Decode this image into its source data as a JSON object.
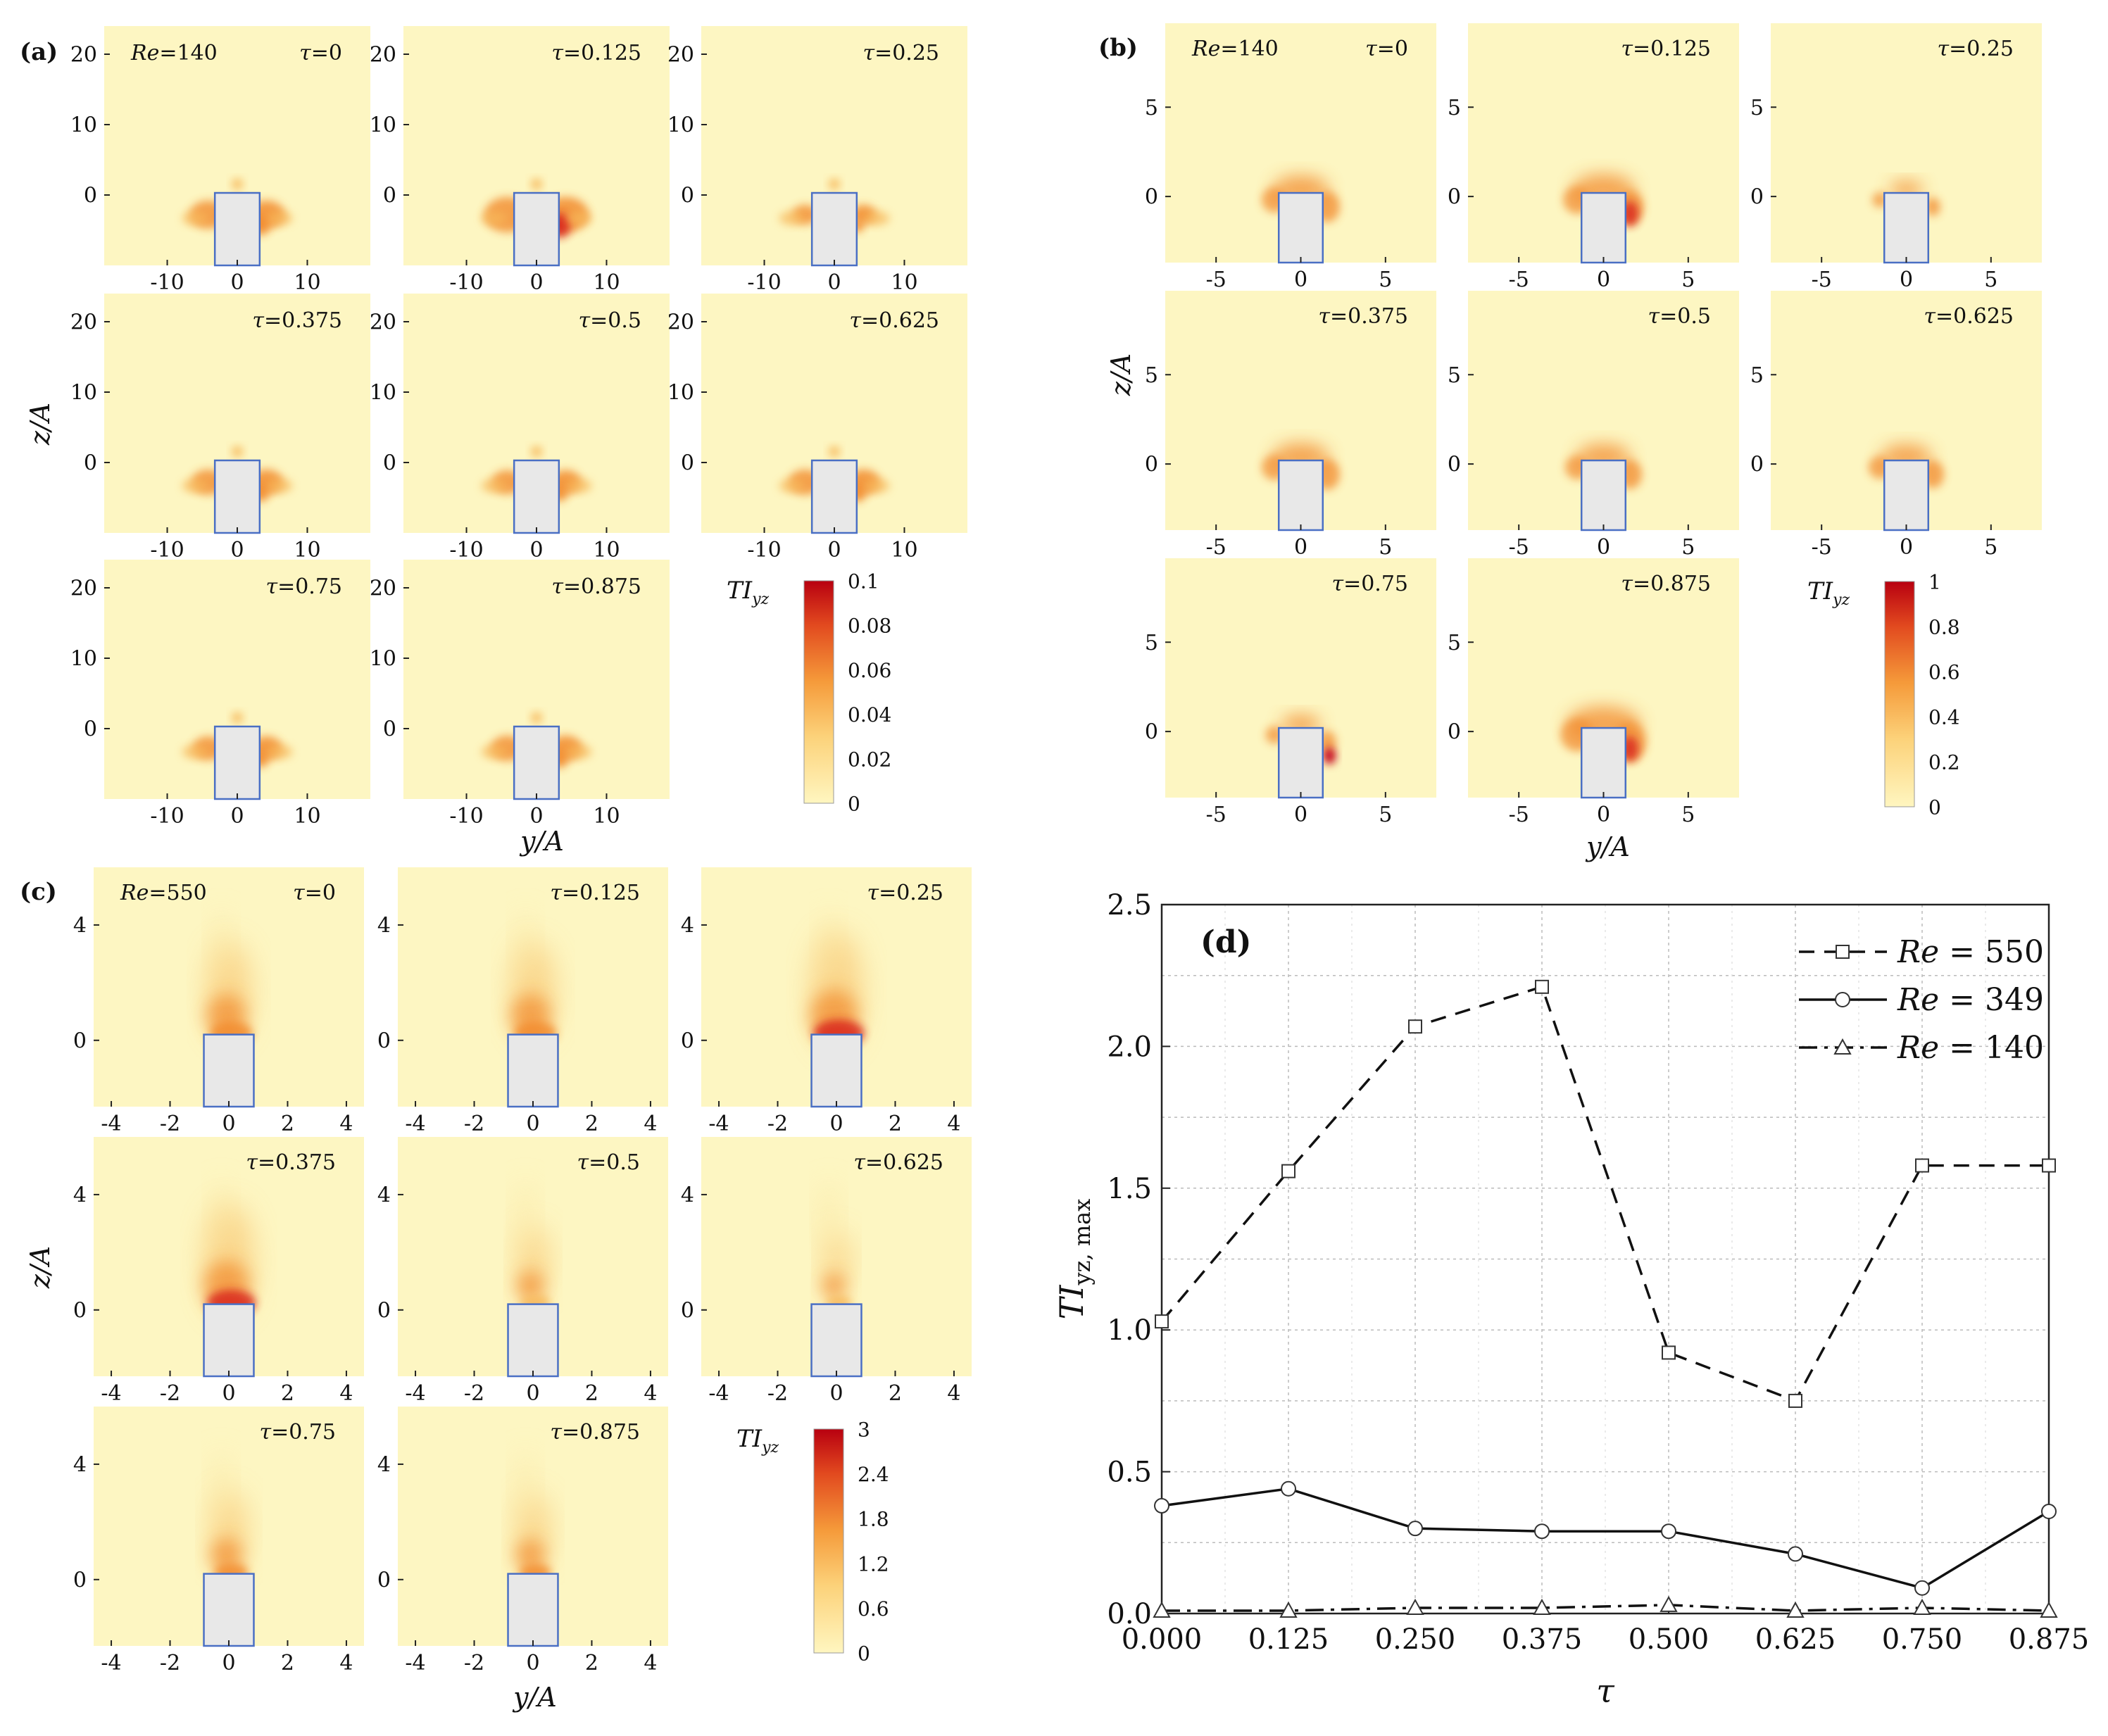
{
  "figure": {
    "panel_labels": [
      "(a)",
      "(b)",
      "(c)",
      "(d)"
    ],
    "axis_label_z": "z/A",
    "axis_label_y": "y/A",
    "colorbar_label_main": "TI",
    "colorbar_label_sub": "yz",
    "colors": {
      "background": "#fdf6c2",
      "obstacle_fill": "#e8e8e8",
      "obstacle_edge": "#4a6fc4",
      "colormap_low": "#fff6c0",
      "colormap_mid": "#f59a3a",
      "colormap_high": "#c40012"
    }
  },
  "panels": {
    "a": {
      "label": "(a)",
      "re_prefix": "Re",
      "re_value": "=140",
      "ylim": [
        -10,
        24
      ],
      "xlim": [
        -19,
        19
      ],
      "y_ticks": [
        "20",
        "10",
        "0"
      ],
      "x_ticks": [
        "-10",
        "0",
        "10"
      ],
      "colorbar_ticks": [
        "0.1",
        "0.08",
        "0.06",
        "0.04",
        "0.02",
        "0"
      ],
      "colorbar_max": 0.1
    },
    "b": {
      "label": "(b)",
      "re_prefix": "Re",
      "re_value": "=140",
      "ylim": [
        -3.7,
        9.7
      ],
      "xlim": [
        -8,
        8
      ],
      "y_ticks": [
        "5",
        "0"
      ],
      "x_ticks": [
        "-5",
        "0",
        "5"
      ],
      "colorbar_ticks": [
        "1",
        "0.8",
        "0.6",
        "0.4",
        "0.2",
        "0"
      ],
      "colorbar_max": 1
    },
    "c": {
      "label": "(c)",
      "re_prefix": "Re",
      "re_value": "=550",
      "ylim": [
        -2.3,
        6
      ],
      "xlim": [
        -4.6,
        4.6
      ],
      "y_ticks": [
        "4",
        "0"
      ],
      "x_ticks": [
        "-4",
        "-2",
        "0",
        "2",
        "4"
      ],
      "colorbar_ticks": [
        "3",
        "2.4",
        "1.8",
        "1.2",
        "0.6",
        "0"
      ],
      "colorbar_max": 3
    }
  },
  "tau_labels": [
    "τ=0",
    "τ=0.125",
    "τ=0.25",
    "τ=0.375",
    "τ=0.5",
    "τ=0.625",
    "τ=0.75",
    "τ=0.875"
  ],
  "chart_data": {
    "type": "line",
    "panel_label": "(d)",
    "title": "",
    "xlabel": "τ",
    "ylabel_main": "TI",
    "ylabel_sub": "yz, max",
    "x": [
      0.0,
      0.125,
      0.25,
      0.375,
      0.5,
      0.625,
      0.75,
      0.875
    ],
    "x_tick_labels": [
      "0.000",
      "0.125",
      "0.250",
      "0.375",
      "0.500",
      "0.625",
      "0.750",
      "0.875"
    ],
    "y_tick_labels": [
      "0.0",
      "0.5",
      "1.0",
      "1.5",
      "2.0",
      "2.5"
    ],
    "xlim": [
      0.0,
      0.875
    ],
    "ylim": [
      0.0,
      2.5
    ],
    "grid": true,
    "legend_position": "top-right",
    "series": [
      {
        "name_prefix": "Re",
        "name_value": " = 550",
        "marker": "square",
        "line": "dashed",
        "values": [
          1.03,
          1.56,
          2.07,
          2.21,
          0.92,
          0.75,
          1.58,
          1.58
        ]
      },
      {
        "name_prefix": "Re",
        "name_value": " = 349",
        "marker": "circle",
        "line": "solid",
        "values": [
          0.38,
          0.44,
          0.3,
          0.29,
          0.29,
          0.21,
          0.09,
          0.36
        ]
      },
      {
        "name_prefix": "Re",
        "name_value": " = 140",
        "marker": "triangle",
        "line": "dashdot",
        "values": [
          0.01,
          0.01,
          0.02,
          0.02,
          0.03,
          0.01,
          0.02,
          0.01
        ]
      }
    ]
  }
}
